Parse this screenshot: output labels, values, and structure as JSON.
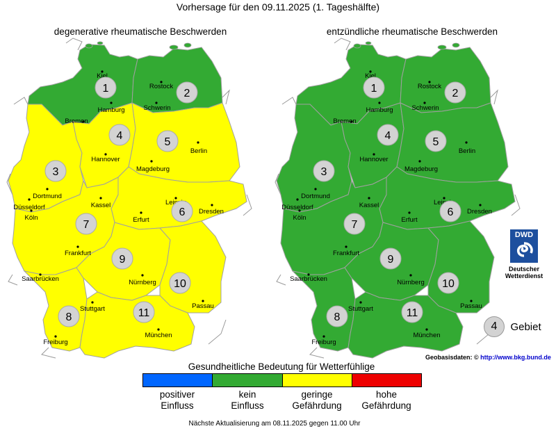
{
  "title": "Vorhersage für den 09.11.2025 (1. Tageshälfte)",
  "maps": [
    {
      "title": "degenerative rheumatische Beschwerden",
      "region_levels": {
        "1": "kein",
        "2": "kein",
        "3": "geringe",
        "4": "geringe",
        "5": "geringe",
        "6": "geringe",
        "7": "geringe",
        "8": "geringe",
        "9": "geringe",
        "10": "geringe",
        "11": "geringe"
      }
    },
    {
      "title": "entzündliche rheumatische Beschwerden",
      "region_levels": {
        "1": "kein",
        "2": "kein",
        "3": "kein",
        "4": "kein",
        "5": "kein",
        "6": "kein",
        "7": "kein",
        "8": "kein",
        "9": "kein",
        "10": "kein",
        "11": "kein"
      }
    }
  ],
  "region_numbers": [
    "1",
    "2",
    "3",
    "4",
    "5",
    "6",
    "7",
    "8",
    "9",
    "10",
    "11"
  ],
  "cities": [
    "Kiel",
    "Rostock",
    "Hamburg",
    "Schwerin",
    "Bremen",
    "Hannover",
    "Berlin",
    "Magdeburg",
    "Dortmund",
    "Düsseldorf",
    "Köln",
    "Kassel",
    "Leipzig",
    "Dresden",
    "Erfurt",
    "Frankfurt",
    "Saarbrücken",
    "Nürnberg",
    "Passau",
    "Stuttgart",
    "München",
    "Freiburg"
  ],
  "legend": {
    "title": "Gesundheitliche Bedeutung für Wetterfühlige",
    "items": [
      {
        "key": "positiv",
        "line1": "positiver",
        "line2": "Einfluss",
        "color": "#0066ff"
      },
      {
        "key": "kein",
        "line1": "kein",
        "line2": "Einfluss",
        "color": "#33aa33"
      },
      {
        "key": "geringe",
        "line1": "geringe",
        "line2": "Gefährdung",
        "color": "#ffff00"
      },
      {
        "key": "hohe",
        "line1": "hohe",
        "line2": "Gefährdung",
        "color": "#ee0000"
      }
    ]
  },
  "logo": {
    "text": "DWD",
    "caption_line1": "Deutscher",
    "caption_line2": "Wetterdienst"
  },
  "gebiet": {
    "number": "4",
    "label": "Gebiet"
  },
  "geobasis": {
    "label": "Geobasisdaten: ©",
    "url": "http://www.bkg.bund.de"
  },
  "footer": "Nächste Aktualisierung am 08.11.2025 gegen 11.00 Uhr",
  "colors": {
    "region_border": "#a0a0a0",
    "circle_fill": "#d3d3d3"
  }
}
